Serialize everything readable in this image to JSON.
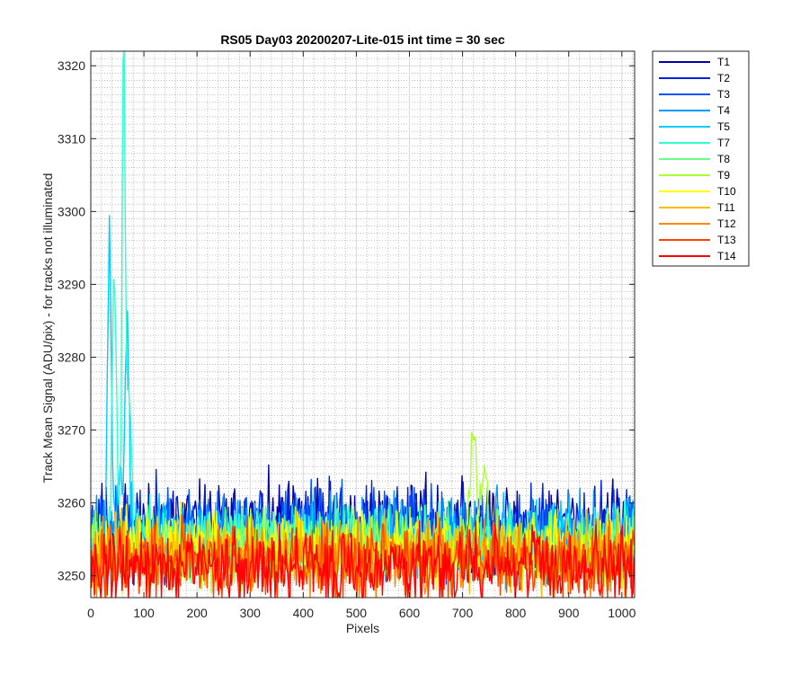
{
  "chart_data": {
    "type": "line",
    "title": "RS05 Day03 20200207-Lite-015 int time = 30 sec",
    "xlabel": "Pixels",
    "ylabel": "Track Mean Signal (ADU/pix) - for tracks not illuminated",
    "xlim": [
      0,
      1024
    ],
    "ylim": [
      3247,
      3322
    ],
    "xticks": [
      0,
      100,
      200,
      300,
      400,
      500,
      600,
      700,
      800,
      900,
      1000
    ],
    "yticks": [
      3250,
      3260,
      3270,
      3280,
      3290,
      3300,
      3310,
      3320
    ],
    "grid": "major and minor",
    "legend_position": "outside-top-right",
    "series": [
      {
        "name": "T1",
        "color": "#0000aa",
        "baseline": 3256.8,
        "spread": 4.2,
        "seed": 11,
        "peaks": []
      },
      {
        "name": "T2",
        "color": "#0022dd",
        "baseline": 3256.4,
        "spread": 4.2,
        "seed": 23,
        "peaks": []
      },
      {
        "name": "T3",
        "color": "#0055ff",
        "baseline": 3256.0,
        "spread": 4.0,
        "seed": 37,
        "peaks": []
      },
      {
        "name": "T4",
        "color": "#0099ff",
        "baseline": 3255.5,
        "spread": 3.8,
        "seed": 41,
        "peaks": []
      },
      {
        "name": "T5",
        "color": "#00ccff",
        "baseline": 3255.0,
        "spread": 3.6,
        "seed": 53,
        "peaks": [
          [
            35,
            3296,
            4
          ],
          [
            55,
            3265,
            3
          ],
          [
            68,
            3287,
            4
          ]
        ]
      },
      {
        "name": "T7",
        "color": "#33ffcc",
        "baseline": 3254.8,
        "spread": 3.4,
        "seed": 67,
        "peaks": [
          [
            44,
            3292,
            4
          ],
          [
            62,
            3322,
            3
          ],
          [
            72,
            3275,
            4
          ]
        ]
      },
      {
        "name": "T8",
        "color": "#66ff88",
        "baseline": 3254.4,
        "spread": 3.4,
        "seed": 71,
        "peaks": []
      },
      {
        "name": "T9",
        "color": "#aaff33",
        "baseline": 3254.0,
        "spread": 3.4,
        "seed": 83,
        "peaks": [
          [
            720,
            3270,
            5
          ],
          [
            740,
            3263,
            6
          ]
        ]
      },
      {
        "name": "T10",
        "color": "#ffff00",
        "baseline": 3253.5,
        "spread": 3.4,
        "seed": 97,
        "peaks": []
      },
      {
        "name": "T11",
        "color": "#ffbb00",
        "baseline": 3253.0,
        "spread": 3.4,
        "seed": 101,
        "peaks": []
      },
      {
        "name": "T12",
        "color": "#ff8800",
        "baseline": 3252.5,
        "spread": 3.4,
        "seed": 113,
        "peaks": []
      },
      {
        "name": "T13",
        "color": "#ff4400",
        "baseline": 3251.8,
        "spread": 3.6,
        "seed": 127,
        "peaks": []
      },
      {
        "name": "T14",
        "color": "#ff0000",
        "baseline": 3251.2,
        "spread": 3.8,
        "seed": 131,
        "peaks": []
      }
    ]
  }
}
